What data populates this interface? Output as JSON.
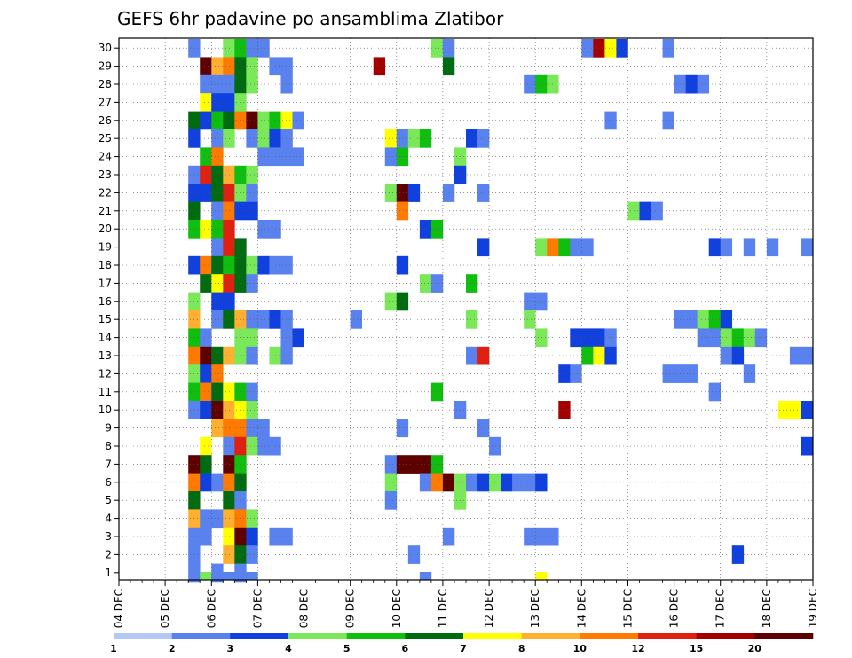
{
  "chart_data": {
    "type": "heatmap",
    "title": "GEFS 6hr padavine po ansamblima Zlatibor",
    "x_tick_labels": [
      "04 DEC",
      "05 DEC",
      "06 DEC",
      "07 DEC",
      "08 DEC",
      "09 DEC",
      "10 DEC",
      "11 DEC",
      "12 DEC",
      "13 DEC",
      "14 DEC",
      "15 DEC",
      "16 DEC",
      "17 DEC",
      "18 DEC",
      "19 DEC"
    ],
    "y_tick_labels": [
      "1",
      "2",
      "3",
      "4",
      "5",
      "6",
      "7",
      "8",
      "9",
      "10",
      "11",
      "12",
      "13",
      "14",
      "15",
      "16",
      "17",
      "18",
      "19",
      "20",
      "21",
      "22",
      "23",
      "24",
      "25",
      "26",
      "27",
      "28",
      "29",
      "30"
    ],
    "xlim": [
      0,
      60
    ],
    "ylim": [
      0,
      30
    ],
    "grid": true,
    "legend": {
      "placement": "bottom",
      "bins": [
        1,
        2,
        3,
        4,
        5,
        6,
        7,
        8,
        10,
        12,
        15,
        20
      ],
      "labels": [
        "1",
        "2",
        "3",
        "4",
        "5",
        "6",
        "7",
        "8",
        "10",
        "12",
        "15",
        "20"
      ],
      "colors": [
        "#b4c8f4",
        "#5a82ee",
        "#1040dd",
        "#7ae858",
        "#10be10",
        "#006b10",
        "#ffff00",
        "#ffb030",
        "#ff7a00",
        "#e02010",
        "#a50000",
        "#5e0000"
      ]
    },
    "cells": [
      [
        6,
        30,
        1
      ],
      [
        9,
        30,
        3
      ],
      [
        10,
        30,
        4
      ],
      [
        11,
        30,
        1
      ],
      [
        12,
        30,
        1
      ],
      [
        27,
        30,
        3
      ],
      [
        28,
        30,
        1
      ],
      [
        40,
        30,
        1
      ],
      [
        41,
        30,
        10
      ],
      [
        42,
        30,
        6
      ],
      [
        43,
        30,
        2
      ],
      [
        47,
        30,
        1
      ],
      [
        7,
        29,
        11
      ],
      [
        8,
        29,
        7
      ],
      [
        9,
        29,
        8
      ],
      [
        10,
        29,
        5
      ],
      [
        11,
        29,
        3
      ],
      [
        13,
        29,
        1
      ],
      [
        14,
        29,
        1
      ],
      [
        22,
        29,
        10
      ],
      [
        28,
        29,
        5
      ],
      [
        7,
        28,
        1
      ],
      [
        8,
        28,
        1
      ],
      [
        9,
        28,
        1
      ],
      [
        10,
        28,
        5
      ],
      [
        11,
        28,
        3
      ],
      [
        14,
        28,
        1
      ],
      [
        35,
        28,
        1
      ],
      [
        36,
        28,
        4
      ],
      [
        37,
        28,
        3
      ],
      [
        48,
        28,
        1
      ],
      [
        49,
        28,
        2
      ],
      [
        50,
        28,
        1
      ],
      [
        7,
        27,
        6
      ],
      [
        8,
        27,
        2
      ],
      [
        9,
        27,
        2
      ],
      [
        10,
        27,
        3
      ],
      [
        6,
        26,
        5
      ],
      [
        7,
        26,
        2
      ],
      [
        8,
        26,
        4
      ],
      [
        9,
        26,
        5
      ],
      [
        10,
        26,
        8
      ],
      [
        11,
        26,
        11
      ],
      [
        12,
        26,
        3
      ],
      [
        13,
        26,
        4
      ],
      [
        14,
        26,
        6
      ],
      [
        15,
        26,
        1
      ],
      [
        42,
        26,
        1
      ],
      [
        47,
        26,
        1
      ],
      [
        6,
        25,
        2
      ],
      [
        8,
        25,
        1
      ],
      [
        9,
        25,
        3
      ],
      [
        11,
        25,
        1
      ],
      [
        12,
        25,
        3
      ],
      [
        13,
        25,
        2
      ],
      [
        14,
        25,
        1
      ],
      [
        23,
        25,
        6
      ],
      [
        24,
        25,
        1
      ],
      [
        25,
        25,
        3
      ],
      [
        26,
        25,
        4
      ],
      [
        30,
        25,
        2
      ],
      [
        31,
        25,
        1
      ],
      [
        7,
        24,
        4
      ],
      [
        8,
        24,
        8
      ],
      [
        12,
        24,
        1
      ],
      [
        13,
        24,
        1
      ],
      [
        14,
        24,
        1
      ],
      [
        15,
        24,
        1
      ],
      [
        23,
        24,
        1
      ],
      [
        24,
        24,
        4
      ],
      [
        29,
        24,
        3
      ],
      [
        6,
        23,
        1
      ],
      [
        7,
        23,
        9
      ],
      [
        8,
        23,
        5
      ],
      [
        9,
        23,
        7
      ],
      [
        10,
        23,
        4
      ],
      [
        11,
        23,
        3
      ],
      [
        29,
        23,
        2
      ],
      [
        6,
        22,
        2
      ],
      [
        7,
        22,
        2
      ],
      [
        8,
        22,
        5
      ],
      [
        9,
        22,
        9
      ],
      [
        10,
        22,
        3
      ],
      [
        11,
        22,
        1
      ],
      [
        23,
        22,
        3
      ],
      [
        24,
        22,
        11
      ],
      [
        25,
        22,
        2
      ],
      [
        28,
        22,
        1
      ],
      [
        31,
        22,
        1
      ],
      [
        6,
        21,
        5
      ],
      [
        8,
        21,
        1
      ],
      [
        9,
        21,
        8
      ],
      [
        10,
        21,
        2
      ],
      [
        11,
        21,
        2
      ],
      [
        24,
        21,
        8
      ],
      [
        44,
        21,
        3
      ],
      [
        45,
        21,
        2
      ],
      [
        46,
        21,
        1
      ],
      [
        6,
        20,
        4
      ],
      [
        7,
        20,
        6
      ],
      [
        8,
        20,
        4
      ],
      [
        9,
        20,
        9
      ],
      [
        12,
        20,
        1
      ],
      [
        13,
        20,
        1
      ],
      [
        26,
        20,
        2
      ],
      [
        27,
        20,
        4
      ],
      [
        8,
        19,
        1
      ],
      [
        9,
        19,
        9
      ],
      [
        10,
        19,
        5
      ],
      [
        31,
        19,
        2
      ],
      [
        36,
        19,
        3
      ],
      [
        37,
        19,
        8
      ],
      [
        38,
        19,
        4
      ],
      [
        39,
        19,
        1
      ],
      [
        40,
        19,
        1
      ],
      [
        51,
        19,
        2
      ],
      [
        52,
        19,
        1
      ],
      [
        54,
        19,
        1
      ],
      [
        56,
        19,
        1
      ],
      [
        59,
        19,
        1
      ],
      [
        6,
        18,
        2
      ],
      [
        7,
        18,
        8
      ],
      [
        8,
        18,
        5
      ],
      [
        9,
        18,
        4
      ],
      [
        10,
        18,
        5
      ],
      [
        11,
        18,
        3
      ],
      [
        12,
        18,
        2
      ],
      [
        13,
        18,
        1
      ],
      [
        14,
        18,
        1
      ],
      [
        24,
        18,
        2
      ],
      [
        7,
        17,
        5
      ],
      [
        8,
        17,
        6
      ],
      [
        9,
        17,
        9
      ],
      [
        10,
        17,
        5
      ],
      [
        11,
        17,
        1
      ],
      [
        26,
        17,
        3
      ],
      [
        27,
        17,
        1
      ],
      [
        30,
        17,
        4
      ],
      [
        6,
        16,
        3
      ],
      [
        8,
        16,
        2
      ],
      [
        9,
        16,
        2
      ],
      [
        23,
        16,
        3
      ],
      [
        24,
        16,
        5
      ],
      [
        35,
        16,
        1
      ],
      [
        36,
        16,
        1
      ],
      [
        6,
        15,
        7
      ],
      [
        8,
        15,
        1
      ],
      [
        9,
        15,
        5
      ],
      [
        10,
        15,
        7
      ],
      [
        11,
        15,
        1
      ],
      [
        12,
        15,
        1
      ],
      [
        13,
        15,
        2
      ],
      [
        14,
        15,
        1
      ],
      [
        20,
        15,
        1
      ],
      [
        30,
        15,
        3
      ],
      [
        35,
        15,
        3
      ],
      [
        48,
        15,
        1
      ],
      [
        49,
        15,
        1
      ],
      [
        50,
        15,
        3
      ],
      [
        51,
        15,
        4
      ],
      [
        52,
        15,
        2
      ],
      [
        6,
        14,
        4
      ],
      [
        7,
        14,
        1
      ],
      [
        10,
        14,
        3
      ],
      [
        11,
        14,
        3
      ],
      [
        14,
        14,
        1
      ],
      [
        15,
        14,
        2
      ],
      [
        36,
        14,
        3
      ],
      [
        39,
        14,
        2
      ],
      [
        40,
        14,
        2
      ],
      [
        41,
        14,
        2
      ],
      [
        42,
        14,
        1
      ],
      [
        50,
        14,
        1
      ],
      [
        51,
        14,
        1
      ],
      [
        52,
        14,
        3
      ],
      [
        53,
        14,
        4
      ],
      [
        54,
        14,
        3
      ],
      [
        55,
        14,
        1
      ],
      [
        6,
        13,
        8
      ],
      [
        7,
        13,
        11
      ],
      [
        8,
        13,
        5
      ],
      [
        9,
        13,
        7
      ],
      [
        10,
        13,
        3
      ],
      [
        11,
        13,
        1
      ],
      [
        13,
        13,
        3
      ],
      [
        14,
        13,
        1
      ],
      [
        30,
        13,
        1
      ],
      [
        31,
        13,
        9
      ],
      [
        40,
        13,
        4
      ],
      [
        41,
        13,
        6
      ],
      [
        42,
        13,
        2
      ],
      [
        52,
        13,
        1
      ],
      [
        53,
        13,
        2
      ],
      [
        58,
        13,
        1
      ],
      [
        59,
        13,
        1
      ],
      [
        6,
        12,
        3
      ],
      [
        7,
        12,
        2
      ],
      [
        8,
        12,
        8
      ],
      [
        38,
        12,
        2
      ],
      [
        39,
        12,
        1
      ],
      [
        47,
        12,
        1
      ],
      [
        48,
        12,
        1
      ],
      [
        49,
        12,
        1
      ],
      [
        54,
        12,
        1
      ],
      [
        6,
        11,
        4
      ],
      [
        7,
        11,
        8
      ],
      [
        8,
        11,
        5
      ],
      [
        9,
        11,
        6
      ],
      [
        10,
        11,
        4
      ],
      [
        11,
        11,
        1
      ],
      [
        27,
        11,
        4
      ],
      [
        51,
        11,
        1
      ],
      [
        6,
        10,
        1
      ],
      [
        7,
        10,
        2
      ],
      [
        8,
        10,
        11
      ],
      [
        9,
        10,
        7
      ],
      [
        10,
        10,
        6
      ],
      [
        11,
        10,
        3
      ],
      [
        29,
        10,
        1
      ],
      [
        38,
        10,
        10
      ],
      [
        57,
        10,
        6
      ],
      [
        58,
        10,
        6
      ],
      [
        59,
        10,
        2
      ],
      [
        8,
        9,
        7
      ],
      [
        9,
        9,
        8
      ],
      [
        10,
        9,
        8
      ],
      [
        11,
        9,
        1
      ],
      [
        12,
        9,
        1
      ],
      [
        24,
        9,
        1
      ],
      [
        31,
        9,
        1
      ],
      [
        7,
        8,
        6
      ],
      [
        9,
        8,
        1
      ],
      [
        10,
        8,
        9
      ],
      [
        11,
        8,
        3
      ],
      [
        12,
        8,
        1
      ],
      [
        13,
        8,
        1
      ],
      [
        32,
        8,
        1
      ],
      [
        59,
        8,
        2
      ],
      [
        6,
        7,
        11
      ],
      [
        7,
        7,
        5
      ],
      [
        9,
        7,
        11
      ],
      [
        10,
        7,
        4
      ],
      [
        23,
        7,
        1
      ],
      [
        24,
        7,
        11
      ],
      [
        25,
        7,
        11
      ],
      [
        26,
        7,
        11
      ],
      [
        27,
        7,
        4
      ],
      [
        6,
        6,
        8
      ],
      [
        7,
        6,
        2
      ],
      [
        8,
        6,
        1
      ],
      [
        9,
        6,
        8
      ],
      [
        10,
        6,
        5
      ],
      [
        23,
        6,
        3
      ],
      [
        26,
        6,
        1
      ],
      [
        27,
        6,
        8
      ],
      [
        28,
        6,
        11
      ],
      [
        29,
        6,
        3
      ],
      [
        30,
        6,
        1
      ],
      [
        31,
        6,
        2
      ],
      [
        32,
        6,
        3
      ],
      [
        33,
        6,
        2
      ],
      [
        34,
        6,
        1
      ],
      [
        35,
        6,
        1
      ],
      [
        36,
        6,
        2
      ],
      [
        6,
        5,
        5
      ],
      [
        9,
        5,
        5
      ],
      [
        10,
        5,
        1
      ],
      [
        23,
        5,
        1
      ],
      [
        29,
        5,
        3
      ],
      [
        6,
        4,
        7
      ],
      [
        7,
        4,
        1
      ],
      [
        8,
        4,
        1
      ],
      [
        9,
        4,
        7
      ],
      [
        10,
        4,
        8
      ],
      [
        11,
        4,
        3
      ],
      [
        6,
        3,
        1
      ],
      [
        7,
        3,
        1
      ],
      [
        9,
        3,
        6
      ],
      [
        10,
        3,
        11
      ],
      [
        11,
        3,
        2
      ],
      [
        13,
        3,
        1
      ],
      [
        14,
        3,
        1
      ],
      [
        28,
        3,
        1
      ],
      [
        35,
        3,
        1
      ],
      [
        36,
        3,
        1
      ],
      [
        37,
        3,
        1
      ],
      [
        6,
        2,
        1
      ],
      [
        9,
        2,
        7
      ],
      [
        10,
        2,
        5
      ],
      [
        11,
        2,
        1
      ],
      [
        25,
        2,
        1
      ],
      [
        53,
        2,
        2
      ],
      [
        6,
        1,
        1
      ],
      [
        8,
        1,
        1
      ],
      [
        10,
        1,
        1
      ]
    ],
    "bottom_row_cells": [
      [
        7,
        3
      ],
      [
        8,
        1
      ],
      [
        9,
        1
      ],
      [
        10,
        1
      ],
      [
        11,
        1
      ],
      [
        26,
        1
      ],
      [
        36,
        6
      ]
    ]
  }
}
